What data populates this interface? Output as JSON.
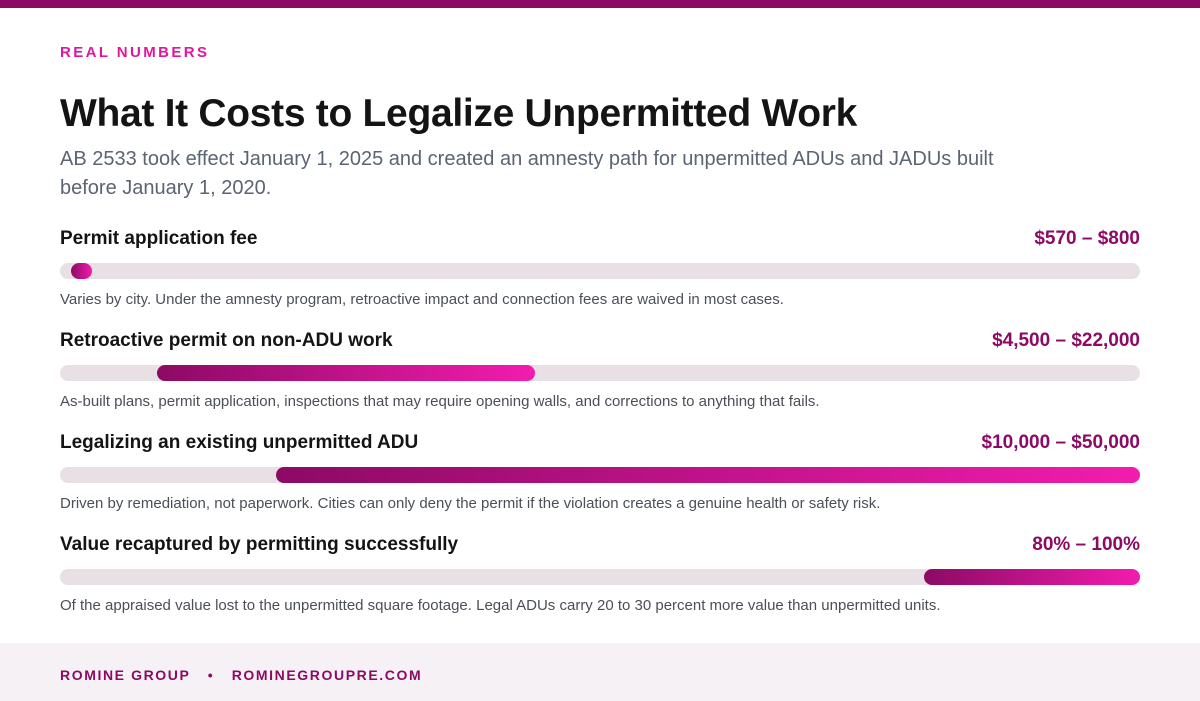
{
  "eyebrow": "REAL NUMBERS",
  "title": "What It Costs to Legalize Unpermitted Work",
  "subtitle": "AB 2533 took effect January 1, 2025 and created an amnesty path for unpermitted ADUs and JADUs built before January 1, 2020.",
  "colors": {
    "accent_dark": "#8c0a64",
    "accent_bright": "#f21cae",
    "track": "#e8e0e4"
  },
  "chart_data": {
    "type": "bar",
    "orientation": "horizontal-range",
    "scale": "relative (each row on its own scale)",
    "rows": [
      {
        "label": "Permit application fee",
        "range_label": "$570 – $800",
        "low": 570,
        "high": 800,
        "bar_start": 0.01,
        "bar_end": 0.03,
        "note": "Varies by city. Under the amnesty program, retroactive impact and connection fees are waived in most cases."
      },
      {
        "label": "Retroactive permit on non-ADU work",
        "range_label": "$4,500 – $22,000",
        "low": 4500,
        "high": 22000,
        "bar_start": 0.09,
        "bar_end": 0.44,
        "note": "As-built plans, permit application, inspections that may require opening walls, and corrections to anything that fails."
      },
      {
        "label": "Legalizing an existing unpermitted ADU",
        "range_label": "$10,000 – $50,000",
        "low": 10000,
        "high": 50000,
        "bar_start": 0.2,
        "bar_end": 1.0,
        "note": "Driven by remediation, not paperwork. Cities can only deny the permit if the violation creates a genuine health or safety risk."
      },
      {
        "label": "Value recaptured by permitting successfully",
        "range_label": "80% – 100%",
        "low": 80,
        "high": 100,
        "bar_start": 0.8,
        "bar_end": 1.0,
        "note": "Of the appraised value lost to the unpermitted square footage. Legal ADUs carry 20 to 30 percent more value than unpermitted units."
      }
    ]
  },
  "footer": {
    "brand": "ROMINE GROUP",
    "separator": "•",
    "site": "ROMINEGROUPRE.COM"
  }
}
